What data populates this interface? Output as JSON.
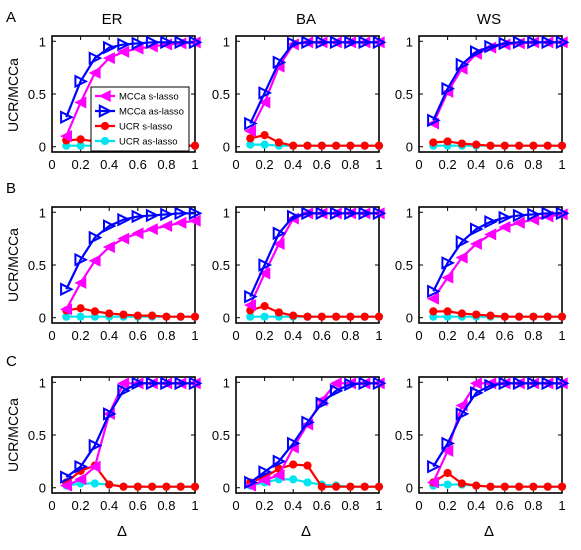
{
  "figure": {
    "col_titles": [
      "ER",
      "BA",
      "WS"
    ],
    "row_labels": [
      "A",
      "B",
      "C"
    ],
    "ylabel": "UCR/MCCa",
    "xlabel": "Δ",
    "colors": {
      "mcca_s": "#ff00ff",
      "mcca_as": "#0000ff",
      "ucr_s": "#ff0000",
      "ucr_as": "#00e5ee"
    }
  },
  "legend": {
    "entries": [
      "MCCa s-lasso",
      "MCCa as-lasso",
      "UCR s-lasso",
      "UCR as-lasso"
    ]
  },
  "axes": {
    "xticks": [
      "0",
      "0.2",
      "0.4",
      "0.6",
      "0.8",
      "1"
    ],
    "yticks": [
      "0",
      "0.5",
      "1"
    ]
  },
  "chart_data": [
    {
      "type": "line",
      "panel": "A-ER",
      "xlim": [
        0,
        1
      ],
      "ylim": [
        -0.05,
        1.05
      ],
      "grid": false,
      "legend": "inside",
      "x": [
        0.1,
        0.2,
        0.3,
        0.4,
        0.5,
        0.6,
        0.7,
        0.8,
        0.9,
        1.0
      ],
      "series": [
        {
          "name": "MCCa s-lasso",
          "values": [
            0.1,
            0.42,
            0.7,
            0.84,
            0.9,
            0.93,
            0.95,
            0.97,
            0.98,
            0.99
          ]
        },
        {
          "name": "MCCa as-lasso",
          "values": [
            0.28,
            0.62,
            0.84,
            0.94,
            0.97,
            0.98,
            0.99,
            0.99,
            0.99,
            0.99
          ]
        },
        {
          "name": "UCR s-lasso",
          "values": [
            0.06,
            0.07,
            0.05,
            0.03,
            0.02,
            0.01,
            0.01,
            0.01,
            0.01,
            0.01
          ]
        },
        {
          "name": "UCR as-lasso",
          "values": [
            0.01,
            0.01,
            0.01,
            0.01,
            0.01,
            0.01,
            0.01,
            0.01,
            0.01,
            0.01
          ]
        }
      ]
    },
    {
      "type": "line",
      "panel": "A-BA",
      "xlim": [
        0,
        1
      ],
      "ylim": [
        -0.05,
        1.05
      ],
      "grid": false,
      "x": [
        0.1,
        0.2,
        0.3,
        0.4,
        0.5,
        0.6,
        0.7,
        0.8,
        0.9,
        1.0
      ],
      "series": [
        {
          "name": "MCCa s-lasso",
          "values": [
            0.15,
            0.42,
            0.76,
            0.97,
            0.99,
            0.99,
            0.99,
            0.99,
            0.99,
            0.99
          ]
        },
        {
          "name": "MCCa as-lasso",
          "values": [
            0.22,
            0.51,
            0.8,
            0.98,
            0.99,
            0.99,
            0.99,
            0.99,
            0.99,
            0.99
          ]
        },
        {
          "name": "UCR s-lasso",
          "values": [
            0.08,
            0.11,
            0.04,
            0.01,
            0.01,
            0.01,
            0.01,
            0.01,
            0.01,
            0.01
          ]
        },
        {
          "name": "UCR as-lasso",
          "values": [
            0.02,
            0.02,
            0.01,
            0.01,
            0.01,
            0.01,
            0.01,
            0.01,
            0.01,
            0.01
          ]
        }
      ]
    },
    {
      "type": "line",
      "panel": "A-WS",
      "xlim": [
        0,
        1
      ],
      "ylim": [
        -0.05,
        1.05
      ],
      "grid": false,
      "x": [
        0.1,
        0.2,
        0.3,
        0.4,
        0.5,
        0.6,
        0.7,
        0.8,
        0.9,
        1.0
      ],
      "series": [
        {
          "name": "MCCa s-lasso",
          "values": [
            0.22,
            0.52,
            0.74,
            0.88,
            0.94,
            0.97,
            0.98,
            0.99,
            0.99,
            0.99
          ]
        },
        {
          "name": "MCCa as-lasso",
          "values": [
            0.25,
            0.55,
            0.78,
            0.9,
            0.95,
            0.98,
            0.99,
            0.99,
            0.99,
            0.99
          ]
        },
        {
          "name": "UCR s-lasso",
          "values": [
            0.04,
            0.05,
            0.03,
            0.02,
            0.01,
            0.01,
            0.01,
            0.01,
            0.01,
            0.01
          ]
        },
        {
          "name": "UCR as-lasso",
          "values": [
            0.01,
            0.01,
            0.01,
            0.01,
            0.01,
            0.01,
            0.01,
            0.01,
            0.01,
            0.01
          ]
        }
      ]
    },
    {
      "type": "line",
      "panel": "B-ER",
      "xlim": [
        0,
        1
      ],
      "ylim": [
        -0.05,
        1.05
      ],
      "grid": false,
      "x": [
        0.1,
        0.2,
        0.3,
        0.4,
        0.5,
        0.6,
        0.7,
        0.8,
        0.9,
        1.0
      ],
      "series": [
        {
          "name": "MCCa s-lasso",
          "values": [
            0.08,
            0.33,
            0.54,
            0.67,
            0.75,
            0.8,
            0.84,
            0.87,
            0.9,
            0.92
          ]
        },
        {
          "name": "MCCa as-lasso",
          "values": [
            0.27,
            0.55,
            0.76,
            0.87,
            0.93,
            0.96,
            0.97,
            0.98,
            0.99,
            0.99
          ]
        },
        {
          "name": "UCR s-lasso",
          "values": [
            0.07,
            0.09,
            0.06,
            0.04,
            0.03,
            0.02,
            0.02,
            0.01,
            0.01,
            0.01
          ]
        },
        {
          "name": "UCR as-lasso",
          "values": [
            0.01,
            0.01,
            0.01,
            0.01,
            0.01,
            0.01,
            0.01,
            0.01,
            0.01,
            0.01
          ]
        }
      ]
    },
    {
      "type": "line",
      "panel": "B-BA",
      "xlim": [
        0,
        1
      ],
      "ylim": [
        -0.05,
        1.05
      ],
      "grid": false,
      "x": [
        0.1,
        0.2,
        0.3,
        0.4,
        0.5,
        0.6,
        0.7,
        0.8,
        0.9,
        1.0
      ],
      "series": [
        {
          "name": "MCCa s-lasso",
          "values": [
            0.12,
            0.42,
            0.7,
            0.94,
            0.99,
            0.99,
            0.99,
            0.99,
            0.99,
            0.99
          ]
        },
        {
          "name": "MCCa as-lasso",
          "values": [
            0.2,
            0.5,
            0.8,
            0.96,
            0.99,
            0.99,
            0.99,
            0.99,
            0.99,
            0.99
          ]
        },
        {
          "name": "UCR s-lasso",
          "values": [
            0.07,
            0.11,
            0.05,
            0.02,
            0.01,
            0.01,
            0.01,
            0.01,
            0.01,
            0.01
          ]
        },
        {
          "name": "UCR as-lasso",
          "values": [
            0.01,
            0.01,
            0.01,
            0.01,
            0.01,
            0.01,
            0.01,
            0.01,
            0.01,
            0.01
          ]
        }
      ]
    },
    {
      "type": "line",
      "panel": "B-WS",
      "xlim": [
        0,
        1
      ],
      "ylim": [
        -0.05,
        1.05
      ],
      "grid": false,
      "x": [
        0.1,
        0.2,
        0.3,
        0.4,
        0.5,
        0.6,
        0.7,
        0.8,
        0.9,
        1.0
      ],
      "series": [
        {
          "name": "MCCa s-lasso",
          "values": [
            0.18,
            0.38,
            0.57,
            0.7,
            0.79,
            0.86,
            0.9,
            0.93,
            0.96,
            0.98
          ]
        },
        {
          "name": "MCCa as-lasso",
          "values": [
            0.25,
            0.52,
            0.72,
            0.84,
            0.91,
            0.95,
            0.97,
            0.98,
            0.99,
            0.99
          ]
        },
        {
          "name": "UCR s-lasso",
          "values": [
            0.06,
            0.06,
            0.04,
            0.03,
            0.02,
            0.01,
            0.01,
            0.01,
            0.01,
            0.01
          ]
        },
        {
          "name": "UCR as-lasso",
          "values": [
            0.01,
            0.01,
            0.01,
            0.01,
            0.01,
            0.01,
            0.01,
            0.01,
            0.01,
            0.01
          ]
        }
      ]
    },
    {
      "type": "line",
      "panel": "C-ER",
      "xlim": [
        0,
        1
      ],
      "ylim": [
        -0.05,
        1.05
      ],
      "grid": false,
      "x": [
        0.1,
        0.2,
        0.3,
        0.4,
        0.5,
        0.6,
        0.7,
        0.8,
        0.9,
        1.0
      ],
      "series": [
        {
          "name": "MCCa s-lasso",
          "values": [
            0.02,
            0.08,
            0.2,
            0.7,
            0.99,
            0.99,
            0.99,
            0.99,
            0.99,
            0.99
          ]
        },
        {
          "name": "MCCa as-lasso",
          "values": [
            0.1,
            0.2,
            0.4,
            0.7,
            0.92,
            0.99,
            0.99,
            0.99,
            0.99,
            0.99
          ]
        },
        {
          "name": "UCR s-lasso",
          "values": [
            0.05,
            0.16,
            0.21,
            0.03,
            0.01,
            0.01,
            0.01,
            0.01,
            0.01,
            0.01
          ]
        },
        {
          "name": "UCR as-lasso",
          "values": [
            0.02,
            0.04,
            0.04,
            0.03,
            0.01,
            0.01,
            0.01,
            0.01,
            0.01,
            0.01
          ]
        }
      ]
    },
    {
      "type": "line",
      "panel": "C-BA",
      "xlim": [
        0,
        1
      ],
      "ylim": [
        -0.05,
        1.05
      ],
      "grid": false,
      "x": [
        0.1,
        0.2,
        0.3,
        0.4,
        0.5,
        0.6,
        0.7,
        0.8,
        0.9,
        1.0
      ],
      "series": [
        {
          "name": "MCCa s-lasso",
          "values": [
            0.02,
            0.07,
            0.12,
            0.38,
            0.6,
            0.83,
            0.99,
            0.99,
            0.99,
            0.99
          ]
        },
        {
          "name": "MCCa as-lasso",
          "values": [
            0.05,
            0.15,
            0.25,
            0.42,
            0.62,
            0.8,
            0.92,
            0.98,
            0.99,
            0.99
          ]
        },
        {
          "name": "UCR s-lasso",
          "values": [
            0.05,
            0.1,
            0.18,
            0.22,
            0.21,
            0.01,
            0.01,
            0.01,
            0.01,
            0.01
          ]
        },
        {
          "name": "UCR as-lasso",
          "values": [
            0.02,
            0.05,
            0.08,
            0.08,
            0.05,
            0.03,
            0.02,
            0.01,
            0.01,
            0.01
          ]
        }
      ]
    },
    {
      "type": "line",
      "panel": "C-WS",
      "xlim": [
        0,
        1
      ],
      "ylim": [
        -0.05,
        1.05
      ],
      "grid": false,
      "x": [
        0.1,
        0.2,
        0.3,
        0.4,
        0.5,
        0.6,
        0.7,
        0.8,
        0.9,
        1.0
      ],
      "series": [
        {
          "name": "MCCa s-lasso",
          "values": [
            0.05,
            0.35,
            0.78,
            0.99,
            0.99,
            0.99,
            0.99,
            0.99,
            0.99,
            0.99
          ]
        },
        {
          "name": "MCCa as-lasso",
          "values": [
            0.2,
            0.42,
            0.7,
            0.9,
            0.97,
            0.99,
            0.99,
            0.99,
            0.99,
            0.99
          ]
        },
        {
          "name": "UCR s-lasso",
          "values": [
            0.05,
            0.14,
            0.04,
            0.02,
            0.01,
            0.01,
            0.01,
            0.01,
            0.01,
            0.01
          ]
        },
        {
          "name": "UCR as-lasso",
          "values": [
            0.02,
            0.03,
            0.03,
            0.02,
            0.01,
            0.01,
            0.01,
            0.01,
            0.01,
            0.01
          ]
        }
      ]
    }
  ]
}
